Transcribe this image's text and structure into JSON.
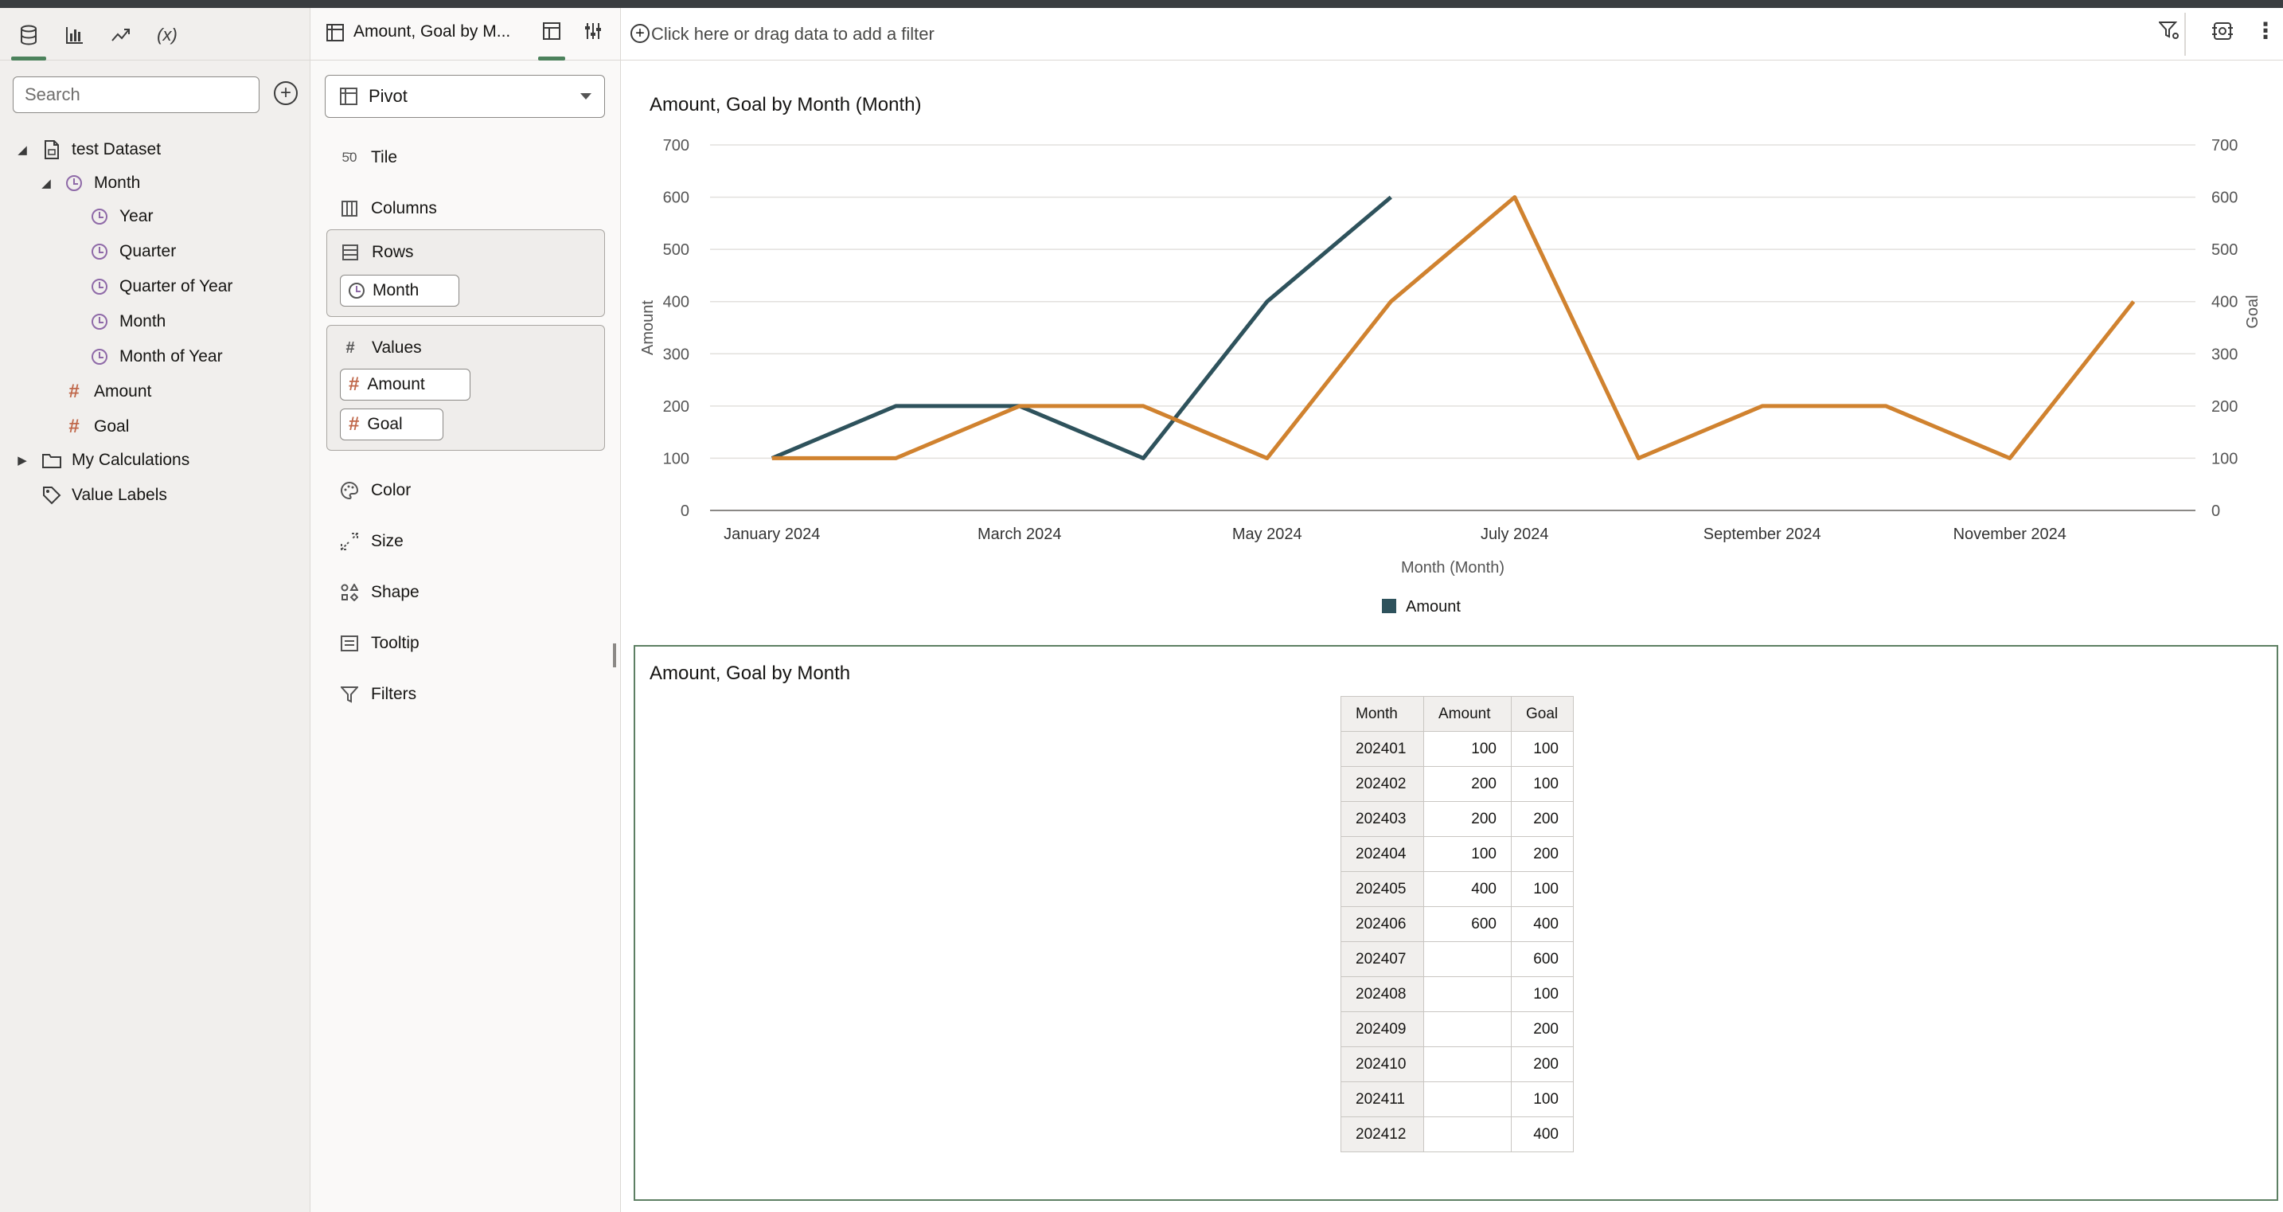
{
  "left_panel": {
    "tabs": [
      {
        "name": "data-tab",
        "icon": "database-icon"
      },
      {
        "name": "visualizations-tab",
        "icon": "bar-chart-icon"
      },
      {
        "name": "analytics-tab",
        "icon": "trend-icon"
      },
      {
        "name": "calculations-tab",
        "icon": "function-icon",
        "label": "(x)"
      }
    ],
    "search": {
      "placeholder": "Search"
    },
    "tree": {
      "dataset": "test Dataset",
      "month_folder": "Month",
      "month_children": [
        "Year",
        "Quarter",
        "Quarter of Year",
        "Month",
        "Month of Year"
      ],
      "measures": [
        "Amount",
        "Goal"
      ],
      "my_calculations": "My Calculations",
      "value_labels": "Value Labels"
    }
  },
  "grammar": {
    "viz_title": "Amount, Goal by M...",
    "viz_type": "Pivot",
    "tile": "Tile",
    "columns": "Columns",
    "rows": {
      "label": "Rows",
      "pill": "Month"
    },
    "values": {
      "label": "Values",
      "pills": [
        "Amount",
        "Goal"
      ]
    },
    "color": "Color",
    "size": "Size",
    "shape": "Shape",
    "tooltip": "Tooltip",
    "filters": "Filters"
  },
  "filter_bar": {
    "placeholder": "Click here or drag data to add a filter"
  },
  "chart_data": {
    "type": "line",
    "title": "Amount, Goal by Month (Month)",
    "xlabel": "Month (Month)",
    "ylabel": "Amount",
    "y2label": "Goal",
    "x": [
      "2024-01",
      "2024-02",
      "2024-03",
      "2024-04",
      "2024-05",
      "2024-06",
      "2024-07",
      "2024-08",
      "2024-09",
      "2024-10",
      "2024-11",
      "2024-12"
    ],
    "x_tick_labels": [
      "January 2024",
      "March 2024",
      "May 2024",
      "July 2024",
      "September 2024",
      "November 2024"
    ],
    "ylim": [
      0,
      700
    ],
    "y2lim": [
      0,
      700
    ],
    "y_ticks": [
      0,
      100,
      200,
      300,
      400,
      500,
      600,
      700
    ],
    "series": [
      {
        "name": "Amount",
        "axis": "left",
        "color": "#2e525c",
        "values": [
          100,
          200,
          200,
          100,
          400,
          600,
          null,
          null,
          null,
          null,
          null,
          null
        ]
      },
      {
        "axis": "right",
        "color": "#d0822f",
        "values": [
          100,
          100,
          200,
          200,
          100,
          400,
          600,
          100,
          200,
          200,
          100,
          400
        ]
      }
    ],
    "legend": {
      "placement": "bottom",
      "entries": [
        "Amount"
      ]
    },
    "grid": true
  },
  "table": {
    "title": "Amount, Goal by Month",
    "headers": [
      "Month",
      "Amount",
      "Goal"
    ],
    "rows": [
      [
        "202401",
        "100",
        "100"
      ],
      [
        "202402",
        "200",
        "100"
      ],
      [
        "202403",
        "200",
        "200"
      ],
      [
        "202404",
        "100",
        "200"
      ],
      [
        "202405",
        "400",
        "100"
      ],
      [
        "202406",
        "600",
        "400"
      ],
      [
        "202407",
        "",
        "600"
      ],
      [
        "202408",
        "",
        "100"
      ],
      [
        "202409",
        "",
        "200"
      ],
      [
        "202410",
        "",
        "200"
      ],
      [
        "202411",
        "",
        "100"
      ],
      [
        "202412",
        "",
        "400"
      ]
    ]
  }
}
